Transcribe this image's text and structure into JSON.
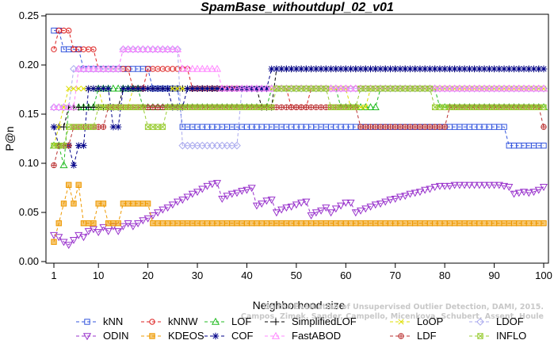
{
  "chart_data": {
    "type": "line",
    "title": "SpamBase_withoutdupl_02_v01",
    "xlabel": "Neighborhood size",
    "ylabel": "P@n",
    "xlim": [
      1,
      100
    ],
    "ylim": [
      0,
      0.25
    ],
    "xticks": [
      1,
      10,
      20,
      30,
      40,
      50,
      60,
      70,
      80,
      90,
      100
    ],
    "yticks": [
      "0.00",
      "0.05",
      "0.10",
      "0.15",
      "0.20",
      "0.25"
    ],
    "grid": false,
    "legend_position": "bottom",
    "watermark": [
      "Campos, Zimek, Sander, Campello, Micenkova, Schubert, Assent, Houle",
      "On the Evaluation of Unsupervised Outlier Detection, DAMI, 2015."
    ],
    "series": [
      {
        "name": "kNN",
        "color": "#3355dd",
        "marker": "square",
        "points": [
          [
            1,
            0.235
          ],
          [
            2,
            0.235
          ],
          [
            3,
            0.216
          ],
          [
            6,
            0.216
          ],
          [
            7,
            0.196
          ],
          [
            20,
            0.196
          ],
          [
            21,
            0.176
          ],
          [
            26,
            0.176
          ],
          [
            27,
            0.137
          ],
          [
            92,
            0.137
          ],
          [
            93,
            0.118
          ],
          [
            100,
            0.118
          ]
        ]
      },
      {
        "name": "kNNW",
        "color": "#dd2222",
        "marker": "circle",
        "points": [
          [
            1,
            0.216
          ],
          [
            2,
            0.235
          ],
          [
            4,
            0.235
          ],
          [
            5,
            0.216
          ],
          [
            9,
            0.216
          ],
          [
            10,
            0.196
          ],
          [
            16,
            0.196
          ],
          [
            17,
            0.176
          ],
          [
            19,
            0.176
          ],
          [
            20,
            0.196
          ],
          [
            28,
            0.196
          ],
          [
            29,
            0.176
          ],
          [
            48,
            0.176
          ],
          [
            49,
            0.157
          ],
          [
            52,
            0.157
          ],
          [
            53,
            0.176
          ],
          [
            100,
            0.176
          ]
        ]
      },
      {
        "name": "LOF",
        "color": "#22bb22",
        "marker": "triangle-up",
        "points": [
          [
            1,
            0.118
          ],
          [
            2,
            0.118
          ],
          [
            3,
            0.098
          ],
          [
            4,
            0.157
          ],
          [
            9,
            0.157
          ],
          [
            10,
            0.176
          ],
          [
            18,
            0.176
          ],
          [
            19,
            0.157
          ],
          [
            44,
            0.157
          ],
          [
            45,
            0.176
          ],
          [
            58,
            0.176
          ],
          [
            59,
            0.157
          ],
          [
            66,
            0.157
          ],
          [
            67,
            0.176
          ],
          [
            78,
            0.176
          ],
          [
            79,
            0.157
          ],
          [
            100,
            0.157
          ]
        ]
      },
      {
        "name": "SimplifiedLOF",
        "color": "#000000",
        "marker": "plus",
        "points": [
          [
            1,
            0.137
          ],
          [
            3,
            0.137
          ],
          [
            4,
            0.157
          ],
          [
            14,
            0.157
          ],
          [
            15,
            0.176
          ],
          [
            42,
            0.176
          ],
          [
            43,
            0.157
          ],
          [
            45,
            0.157
          ],
          [
            46,
            0.196
          ],
          [
            100,
            0.196
          ]
        ]
      },
      {
        "name": "LoOP",
        "color": "#dddd00",
        "marker": "x",
        "points": [
          [
            1,
            0.118
          ],
          [
            2,
            0.137
          ],
          [
            3,
            0.157
          ],
          [
            4,
            0.176
          ],
          [
            10,
            0.176
          ],
          [
            11,
            0.157
          ],
          [
            16,
            0.157
          ],
          [
            17,
            0.176
          ],
          [
            60,
            0.176
          ],
          [
            61,
            0.157
          ],
          [
            64,
            0.157
          ],
          [
            65,
            0.176
          ],
          [
            100,
            0.176
          ]
        ]
      },
      {
        "name": "LDOF",
        "color": "#aaaaee",
        "marker": "diamond",
        "points": [
          [
            1,
            0.157
          ],
          [
            4,
            0.157
          ],
          [
            5,
            0.196
          ],
          [
            14,
            0.196
          ],
          [
            15,
            0.216
          ],
          [
            26,
            0.216
          ],
          [
            27,
            0.118
          ],
          [
            38,
            0.118
          ],
          [
            39,
            0.176
          ],
          [
            100,
            0.176
          ]
        ]
      },
      {
        "name": "ODIN",
        "color": "#9933cc",
        "marker": "triangle-down",
        "points": [
          [
            1,
            0.027
          ],
          [
            2,
            0.025
          ],
          [
            3,
            0.02
          ],
          [
            4,
            0.017
          ],
          [
            5,
            0.022
          ],
          [
            6,
            0.027
          ],
          [
            7,
            0.025
          ],
          [
            8,
            0.031
          ],
          [
            9,
            0.033
          ],
          [
            10,
            0.03
          ],
          [
            11,
            0.035
          ],
          [
            12,
            0.031
          ],
          [
            13,
            0.036
          ],
          [
            14,
            0.031
          ],
          [
            15,
            0.036
          ],
          [
            16,
            0.039
          ],
          [
            17,
            0.036
          ],
          [
            18,
            0.039
          ],
          [
            19,
            0.042
          ],
          [
            20,
            0.044
          ],
          [
            21,
            0.047
          ],
          [
            22,
            0.05
          ],
          [
            23,
            0.053
          ],
          [
            24,
            0.055
          ],
          [
            25,
            0.058
          ],
          [
            26,
            0.061
          ],
          [
            27,
            0.063
          ],
          [
            28,
            0.066
          ],
          [
            29,
            0.069
          ],
          [
            30,
            0.071
          ],
          [
            31,
            0.074
          ],
          [
            32,
            0.077
          ],
          [
            33,
            0.079
          ],
          [
            34,
            0.08
          ],
          [
            35,
            0.064
          ],
          [
            36,
            0.067
          ],
          [
            37,
            0.069
          ],
          [
            38,
            0.07
          ],
          [
            39,
            0.072
          ],
          [
            40,
            0.073
          ],
          [
            41,
            0.075
          ],
          [
            42,
            0.057
          ],
          [
            43,
            0.059
          ],
          [
            44,
            0.062
          ],
          [
            45,
            0.063
          ],
          [
            46,
            0.05
          ],
          [
            47,
            0.053
          ],
          [
            48,
            0.055
          ],
          [
            49,
            0.056
          ],
          [
            50,
            0.058
          ],
          [
            51,
            0.06
          ],
          [
            52,
            0.061
          ],
          [
            53,
            0.047
          ],
          [
            54,
            0.05
          ],
          [
            55,
            0.052
          ],
          [
            56,
            0.055
          ],
          [
            57,
            0.05
          ],
          [
            58,
            0.054
          ],
          [
            59,
            0.057
          ],
          [
            60,
            0.06
          ],
          [
            61,
            0.06
          ],
          [
            62,
            0.05
          ],
          [
            63,
            0.052
          ],
          [
            64,
            0.054
          ],
          [
            65,
            0.056
          ],
          [
            66,
            0.058
          ],
          [
            67,
            0.059
          ],
          [
            68,
            0.061
          ],
          [
            69,
            0.063
          ],
          [
            70,
            0.064
          ],
          [
            71,
            0.066
          ],
          [
            72,
            0.067
          ],
          [
            73,
            0.069
          ],
          [
            74,
            0.07
          ],
          [
            75,
            0.071
          ],
          [
            76,
            0.073
          ],
          [
            77,
            0.074
          ],
          [
            78,
            0.076
          ],
          [
            79,
            0.077
          ],
          [
            80,
            0.077
          ],
          [
            81,
            0.077
          ],
          [
            82,
            0.078
          ],
          [
            83,
            0.078
          ],
          [
            84,
            0.078
          ],
          [
            85,
            0.078
          ],
          [
            86,
            0.078
          ],
          [
            87,
            0.078
          ],
          [
            88,
            0.078
          ],
          [
            89,
            0.078
          ],
          [
            90,
            0.078
          ],
          [
            91,
            0.078
          ],
          [
            92,
            0.077
          ],
          [
            93,
            0.076
          ],
          [
            94,
            0.069
          ],
          [
            95,
            0.07
          ],
          [
            96,
            0.071
          ],
          [
            97,
            0.07
          ],
          [
            98,
            0.071
          ],
          [
            99,
            0.073
          ],
          [
            100,
            0.076
          ]
        ]
      },
      {
        "name": "KDEOS",
        "color": "#ee9900",
        "marker": "square-fill",
        "points": [
          [
            1,
            0.02
          ],
          [
            2,
            0.039
          ],
          [
            3,
            0.059
          ],
          [
            4,
            0.078
          ],
          [
            5,
            0.059
          ],
          [
            6,
            0.078
          ],
          [
            7,
            0.039
          ],
          [
            9,
            0.039
          ],
          [
            10,
            0.059
          ],
          [
            11,
            0.059
          ],
          [
            12,
            0.039
          ],
          [
            14,
            0.039
          ],
          [
            15,
            0.059
          ],
          [
            20,
            0.059
          ],
          [
            21,
            0.039
          ],
          [
            100,
            0.039
          ]
        ]
      },
      {
        "name": "COF",
        "color": "#000088",
        "marker": "asterisk",
        "points": [
          [
            1,
            0.137
          ],
          [
            2,
            0.118
          ],
          [
            4,
            0.118
          ],
          [
            5,
            0.098
          ],
          [
            6,
            0.118
          ],
          [
            7,
            0.118
          ],
          [
            8,
            0.176
          ],
          [
            12,
            0.176
          ],
          [
            13,
            0.137
          ],
          [
            14,
            0.137
          ],
          [
            15,
            0.176
          ],
          [
            24,
            0.176
          ],
          [
            25,
            0.157
          ],
          [
            27,
            0.157
          ],
          [
            28,
            0.176
          ],
          [
            44,
            0.176
          ],
          [
            45,
            0.196
          ],
          [
            100,
            0.196
          ]
        ]
      },
      {
        "name": "FastABOD",
        "color": "#ff88ff",
        "marker": "triangle-up",
        "points": [
          [
            1,
            0.157
          ],
          [
            5,
            0.157
          ],
          [
            6,
            0.196
          ],
          [
            14,
            0.196
          ],
          [
            15,
            0.216
          ],
          [
            26,
            0.216
          ],
          [
            27,
            0.196
          ],
          [
            34,
            0.196
          ],
          [
            35,
            0.176
          ],
          [
            100,
            0.176
          ]
        ]
      },
      {
        "name": "LDF",
        "color": "#bb3333",
        "marker": "circle-plus",
        "points": [
          [
            1,
            0.098
          ],
          [
            2,
            0.118
          ],
          [
            4,
            0.118
          ],
          [
            5,
            0.137
          ],
          [
            11,
            0.137
          ],
          [
            12,
            0.157
          ],
          [
            62,
            0.157
          ],
          [
            63,
            0.137
          ],
          [
            80,
            0.137
          ],
          [
            81,
            0.157
          ],
          [
            99,
            0.157
          ],
          [
            100,
            0.137
          ]
        ]
      },
      {
        "name": "INFLO",
        "color": "#99cc33",
        "marker": "square-x",
        "points": [
          [
            1,
            0.118
          ],
          [
            3,
            0.118
          ],
          [
            4,
            0.137
          ],
          [
            9,
            0.137
          ],
          [
            10,
            0.157
          ],
          [
            19,
            0.157
          ],
          [
            20,
            0.137
          ],
          [
            23,
            0.137
          ],
          [
            24,
            0.157
          ],
          [
            45,
            0.157
          ],
          [
            46,
            0.176
          ],
          [
            56,
            0.176
          ],
          [
            57,
            0.157
          ],
          [
            62,
            0.157
          ],
          [
            63,
            0.176
          ],
          [
            77,
            0.176
          ],
          [
            78,
            0.157
          ],
          [
            100,
            0.157
          ]
        ]
      }
    ]
  }
}
